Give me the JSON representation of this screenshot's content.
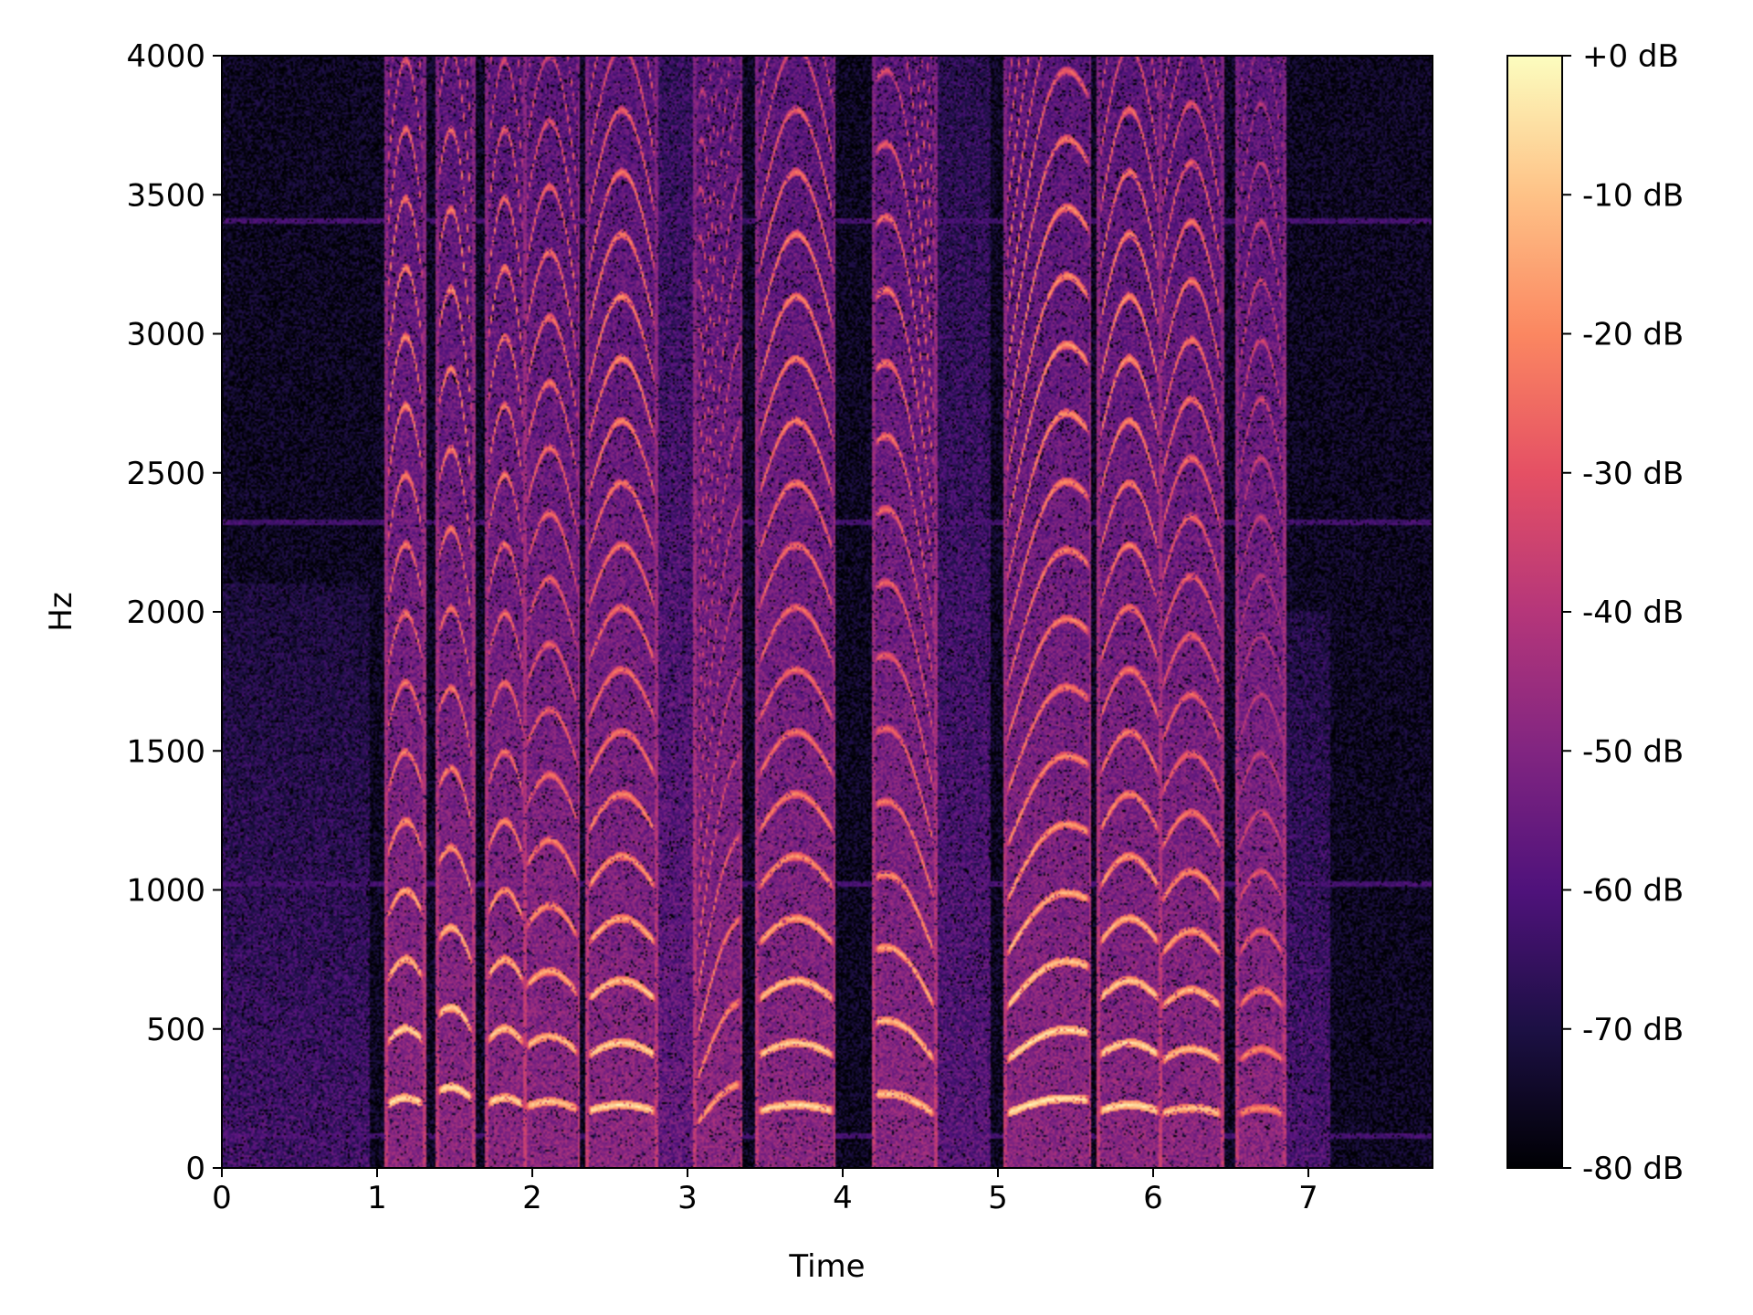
{
  "chart_data": {
    "type": "heatmap",
    "subtype": "spectrogram",
    "colormap": "magma",
    "xlabel": "Time",
    "ylabel": "Hz",
    "xlim": [
      0,
      7.8
    ],
    "ylim": [
      0,
      4000
    ],
    "x_ticks": [
      0,
      1,
      2,
      3,
      4,
      5,
      6,
      7
    ],
    "x_tick_labels": [
      "0",
      "1",
      "2",
      "3",
      "4",
      "5",
      "6",
      "7"
    ],
    "y_ticks": [
      0,
      500,
      1000,
      1500,
      2000,
      2500,
      3000,
      3500,
      4000
    ],
    "y_tick_labels": [
      "0",
      "500",
      "1000",
      "1500",
      "2000",
      "2500",
      "3000",
      "3500",
      "4000"
    ],
    "colorbar": {
      "range_db": [
        -80,
        0
      ],
      "ticks": [
        0,
        -10,
        -20,
        -30,
        -40,
        -50,
        -60,
        -70,
        -80
      ],
      "tick_labels": [
        "+0 dB",
        "-10 dB",
        "-20 dB",
        "-30 dB",
        "-40 dB",
        "-50 dB",
        "-60 dB",
        "-70 dB",
        "-80 dB"
      ]
    },
    "background_db": -75,
    "hum_lines_hz": [
      110,
      1020,
      2320,
      3410
    ],
    "voiced_segments": [
      {
        "start": 1.05,
        "end": 1.3,
        "f0": 220,
        "f0_end": 225,
        "strength_db": -8
      },
      {
        "start": 1.38,
        "end": 1.62,
        "f0": 270,
        "f0_end": 240,
        "strength_db": -8
      },
      {
        "start": 1.7,
        "end": 1.95,
        "f0": 225,
        "f0_end": 220,
        "strength_db": -10
      },
      {
        "start": 1.95,
        "end": 2.3,
        "f0": 215,
        "f0_end": 205,
        "strength_db": -12
      },
      {
        "start": 2.35,
        "end": 2.8,
        "f0": 200,
        "f0_end": 200,
        "strength_db": -9
      },
      {
        "start": 3.05,
        "end": 3.35,
        "f0": 150,
        "f0_end": 300,
        "strength_db": -18
      },
      {
        "start": 3.45,
        "end": 3.95,
        "f0": 200,
        "f0_end": 200,
        "strength_db": -10
      },
      {
        "start": 4.2,
        "end": 4.6,
        "f0": 260,
        "f0_end": 190,
        "strength_db": -12
      },
      {
        "start": 5.05,
        "end": 5.6,
        "f0": 190,
        "f0_end": 240,
        "strength_db": -7
      },
      {
        "start": 5.65,
        "end": 6.05,
        "f0": 200,
        "f0_end": 200,
        "strength_db": -8
      },
      {
        "start": 6.05,
        "end": 6.45,
        "f0": 190,
        "f0_end": 190,
        "strength_db": -12
      },
      {
        "start": 6.55,
        "end": 6.85,
        "f0": 190,
        "f0_end": 190,
        "strength_db": -22
      }
    ],
    "noise_regions": [
      {
        "start": 0.0,
        "end": 0.95,
        "fmax": 2100,
        "strength_db": -62
      },
      {
        "start": 2.8,
        "end": 3.05,
        "fmax": 4000,
        "strength_db": -55
      },
      {
        "start": 4.6,
        "end": 4.95,
        "fmax": 4000,
        "strength_db": -58
      },
      {
        "start": 6.85,
        "end": 7.15,
        "fmax": 2000,
        "strength_db": -60
      }
    ]
  }
}
